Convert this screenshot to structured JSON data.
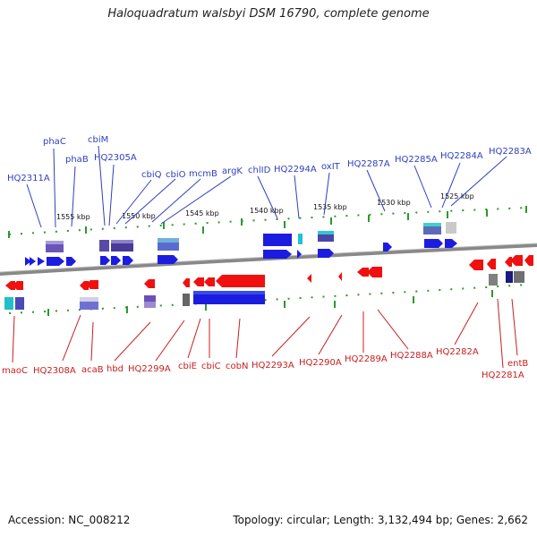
{
  "title": "Haloquadratum walsbyi DSM 16790, complete genome",
  "accession": "Accession: NC_008212",
  "summary": "Topology: circular; Length: 3,132,494 bp; Genes: 2,662",
  "colors": {
    "forward": "#1c1ce0",
    "reverse": "#f01010",
    "backbone": "#888888",
    "ticks": "#2a9a2a",
    "label_blue": "#2f3fbf",
    "label_red": "#c81e1e"
  },
  "scale_ticks": [
    "1555 kbp",
    "1550 kbp",
    "1545 kbp",
    "1540 kbp",
    "1535 kbp",
    "1530 kbp",
    "1525 kbp"
  ],
  "forward_genes": [
    "HQ2311A",
    "phaC",
    "phaB",
    "cbiM",
    "HQ2305A",
    "cbiQ",
    "cbiO",
    "mcmB",
    "argK",
    "chlID",
    "HQ2294A",
    "oxIT",
    "HQ2287A",
    "HQ2285A",
    "HQ2284A",
    "HQ2283A"
  ],
  "reverse_genes": [
    "maoC",
    "HQ2308A",
    "acaB",
    "hbd",
    "HQ2299A",
    "cbiE",
    "cbiC",
    "cobN",
    "HQ2293A",
    "HQ2290A",
    "HQ2289A",
    "HQ2288A",
    "HQ2282A",
    "HQ2281A",
    "entB"
  ]
}
